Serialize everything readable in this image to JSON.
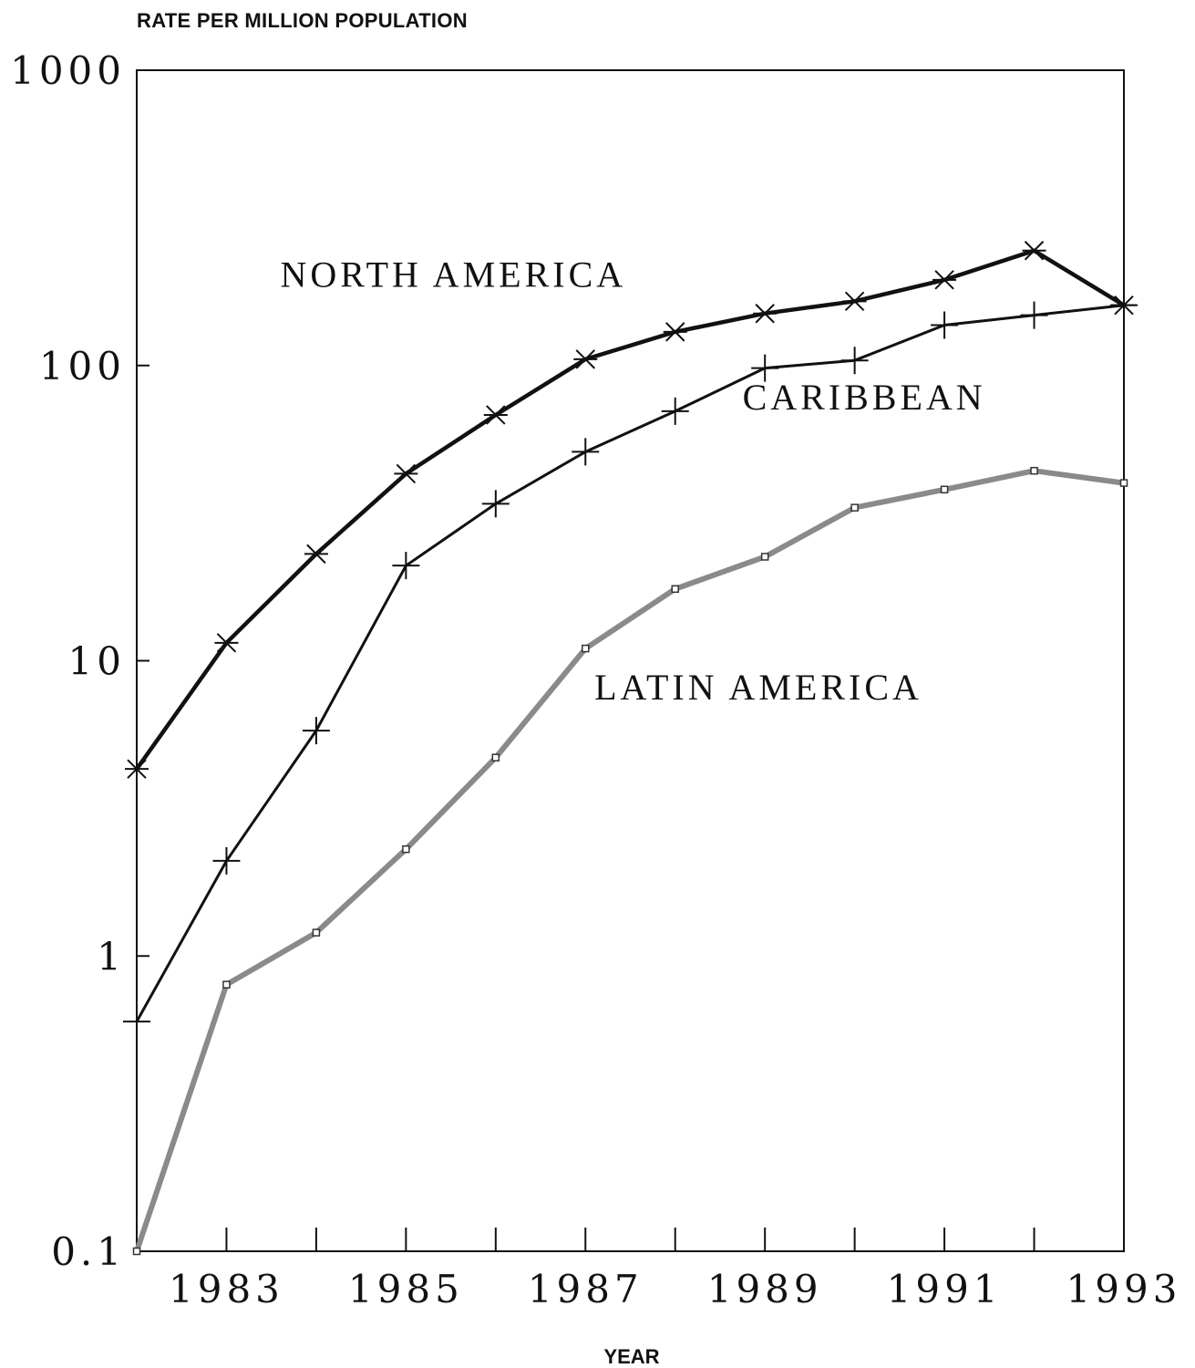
{
  "chart_data": {
    "type": "line",
    "ylabel": "RATE PER MILLION POPULATION",
    "xlabel": "YEAR",
    "y_scale": "log",
    "ylim": [
      0.1,
      1000
    ],
    "y_ticks": [
      {
        "value": 0.1,
        "label": "0.1"
      },
      {
        "value": 1,
        "label": "1"
      },
      {
        "value": 10,
        "label": "10"
      },
      {
        "value": 100,
        "label": "100"
      },
      {
        "value": 1000,
        "label": "1000"
      }
    ],
    "xlim": [
      1982,
      1993
    ],
    "x_ticks": [
      1983,
      1984,
      1985,
      1986,
      1987,
      1988,
      1989,
      1990,
      1991,
      1992,
      1993
    ],
    "x_tick_labels": [
      {
        "value": 1983,
        "label": "1983"
      },
      {
        "value": 1985,
        "label": "1985"
      },
      {
        "value": 1987,
        "label": "1987"
      },
      {
        "value": 1989,
        "label": "1989"
      },
      {
        "value": 1991,
        "label": "1991"
      },
      {
        "value": 1993,
        "label": "1993"
      }
    ],
    "x": [
      1982,
      1983,
      1984,
      1985,
      1986,
      1987,
      1988,
      1989,
      1990,
      1991,
      1992,
      1993
    ],
    "grid": false,
    "legend": "none",
    "series": [
      {
        "name": "NORTH AMERICA",
        "label_at": {
          "x": 1983.6,
          "y": 185
        },
        "marker": "asterisk",
        "color": "#111111",
        "values": [
          4.3,
          11.5,
          23,
          43,
          68,
          105,
          130,
          150,
          165,
          195,
          245,
          160
        ]
      },
      {
        "name": "CARIBBEAN",
        "label_at": {
          "x": 1988.75,
          "y": 71
        },
        "marker": "plus",
        "color": "#111111",
        "values": [
          0.6,
          2.1,
          5.8,
          21,
          34,
          51,
          70,
          98,
          104,
          137,
          148,
          160
        ]
      },
      {
        "name": "LATIN AMERICA",
        "label_at": {
          "x": 1987.1,
          "y": 7.4
        },
        "marker": "square",
        "color": "#8a8a8a",
        "values": [
          0.1,
          0.8,
          1.2,
          2.3,
          4.7,
          11,
          17.5,
          22.5,
          33,
          38,
          44,
          40
        ]
      }
    ]
  }
}
